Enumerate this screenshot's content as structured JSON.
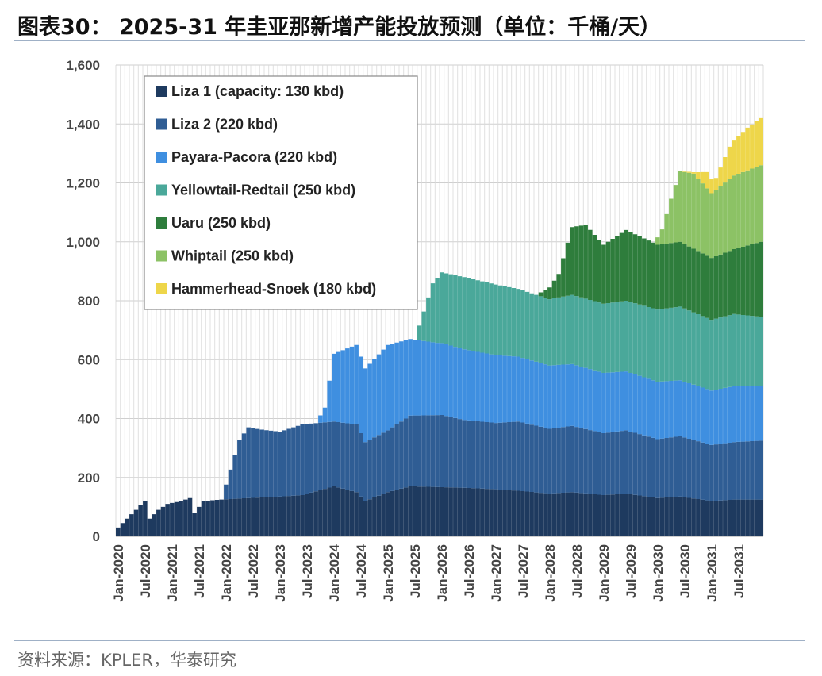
{
  "header": {
    "title": "图表30： 2025-31 年圭亚那新增产能投放预测（单位：千桶/天）"
  },
  "footer": {
    "source": "资料来源：KPLER，华泰研究"
  },
  "chart_data": {
    "type": "area",
    "stacked": true,
    "ylim": [
      0,
      1600
    ],
    "yticks": [
      0,
      200,
      400,
      600,
      800,
      1000,
      1200,
      1400,
      1600
    ],
    "ytick_labels": [
      "0",
      "200",
      "400",
      "600",
      "800",
      "1,000",
      "1,200",
      "1,400",
      "1,600"
    ],
    "xtick_labels": [
      "Jan-2020",
      "Jul-2020",
      "Jan-2021",
      "Jul-2021",
      "Jan-2022",
      "Jul-2022",
      "Jan-2023",
      "Jul-2023",
      "Jan-2024",
      "Jul-2024",
      "Jan-2025",
      "Jul-2025",
      "Jan-2026",
      "Jul-2026",
      "Jan-2027",
      "Jul-2027",
      "Jan-2028",
      "Jul-2028",
      "Jan-2029",
      "Jul-2029",
      "Jan-2030",
      "Jul-2030",
      "Jan-2031",
      "Jul-2031"
    ],
    "grid": true,
    "legend_position": "top-left",
    "series": [
      {
        "name": "Liza 1 (capacity: 130 kbd)",
        "color": "#1e3a5f",
        "points": [
          [
            "2020-01",
            30
          ],
          [
            "2020-03",
            60
          ],
          [
            "2020-05",
            90
          ],
          [
            "2020-07",
            120
          ],
          [
            "2020-08",
            60
          ],
          [
            "2020-10",
            90
          ],
          [
            "2020-12",
            110
          ],
          [
            "2021-03",
            120
          ],
          [
            "2021-05",
            130
          ],
          [
            "2021-06",
            80
          ],
          [
            "2021-08",
            120
          ],
          [
            "2021-12",
            125
          ],
          [
            "2022-06",
            130
          ],
          [
            "2023-01",
            135
          ],
          [
            "2023-06",
            140
          ],
          [
            "2024-01",
            170
          ],
          [
            "2024-06",
            150
          ],
          [
            "2024-08",
            120
          ],
          [
            "2025-01",
            150
          ],
          [
            "2025-06",
            170
          ],
          [
            "2026-06",
            165
          ],
          [
            "2027-01",
            160
          ],
          [
            "2027-06",
            155
          ],
          [
            "2028-01",
            145
          ],
          [
            "2028-06",
            150
          ],
          [
            "2029-01",
            140
          ],
          [
            "2029-06",
            145
          ],
          [
            "2030-01",
            130
          ],
          [
            "2030-06",
            135
          ],
          [
            "2031-01",
            120
          ],
          [
            "2031-06",
            125
          ],
          [
            "2031-12",
            125
          ]
        ]
      },
      {
        "name": "Liza 2 (220 kbd)",
        "color": "#2f5d94",
        "points": [
          [
            "2020-01",
            0
          ],
          [
            "2021-12",
            0
          ],
          [
            "2022-02",
            100
          ],
          [
            "2022-04",
            200
          ],
          [
            "2022-06",
            240
          ],
          [
            "2022-09",
            230
          ],
          [
            "2023-01",
            220
          ],
          [
            "2023-06",
            240
          ],
          [
            "2024-01",
            220
          ],
          [
            "2024-06",
            230
          ],
          [
            "2024-08",
            200
          ],
          [
            "2025-01",
            210
          ],
          [
            "2025-06",
            240
          ],
          [
            "2026-01",
            245
          ],
          [
            "2026-06",
            230
          ],
          [
            "2027-01",
            225
          ],
          [
            "2027-06",
            235
          ],
          [
            "2028-01",
            220
          ],
          [
            "2028-06",
            225
          ],
          [
            "2029-01",
            210
          ],
          [
            "2029-06",
            215
          ],
          [
            "2030-01",
            200
          ],
          [
            "2030-06",
            205
          ],
          [
            "2031-01",
            190
          ],
          [
            "2031-06",
            195
          ],
          [
            "2031-12",
            200
          ]
        ]
      },
      {
        "name": "Payara-Pacora (220 kbd)",
        "color": "#3f8fe0",
        "points": [
          [
            "2020-01",
            0
          ],
          [
            "2023-09",
            0
          ],
          [
            "2023-11",
            50
          ],
          [
            "2024-01",
            230
          ],
          [
            "2024-06",
            270
          ],
          [
            "2024-08",
            250
          ],
          [
            "2025-01",
            290
          ],
          [
            "2025-06",
            260
          ],
          [
            "2025-12",
            245
          ],
          [
            "2026-06",
            240
          ],
          [
            "2027-01",
            230
          ],
          [
            "2027-06",
            220
          ],
          [
            "2028-01",
            215
          ],
          [
            "2028-06",
            210
          ],
          [
            "2029-01",
            205
          ],
          [
            "2029-06",
            200
          ],
          [
            "2030-01",
            195
          ],
          [
            "2030-06",
            190
          ],
          [
            "2031-01",
            185
          ],
          [
            "2031-06",
            190
          ],
          [
            "2031-12",
            185
          ]
        ]
      },
      {
        "name": "Yellowtail-Redtail (250 kbd)",
        "color": "#4aa89a",
        "points": [
          [
            "2020-01",
            0
          ],
          [
            "2025-07",
            0
          ],
          [
            "2025-09",
            100
          ],
          [
            "2025-11",
            200
          ],
          [
            "2026-01",
            240
          ],
          [
            "2026-06",
            245
          ],
          [
            "2027-01",
            240
          ],
          [
            "2027-06",
            230
          ],
          [
            "2028-01",
            225
          ],
          [
            "2028-06",
            235
          ],
          [
            "2029-01",
            235
          ],
          [
            "2029-06",
            240
          ],
          [
            "2030-01",
            245
          ],
          [
            "2030-06",
            250
          ],
          [
            "2031-01",
            240
          ],
          [
            "2031-06",
            245
          ],
          [
            "2031-12",
            235
          ]
        ]
      },
      {
        "name": "Uaru (250 kbd)",
        "color": "#2e7d3c",
        "points": [
          [
            "2020-01",
            0
          ],
          [
            "2027-10",
            0
          ],
          [
            "2028-01",
            40
          ],
          [
            "2028-03",
            80
          ],
          [
            "2028-06",
            230
          ],
          [
            "2028-09",
            250
          ],
          [
            "2029-01",
            200
          ],
          [
            "2029-06",
            240
          ],
          [
            "2030-01",
            220
          ],
          [
            "2030-06",
            220
          ],
          [
            "2031-01",
            210
          ],
          [
            "2031-06",
            220
          ],
          [
            "2031-12",
            255
          ]
        ]
      },
      {
        "name": "Whiptail (250 kbd)",
        "color": "#8cc265",
        "points": [
          [
            "2020-01",
            0
          ],
          [
            "2029-12",
            0
          ],
          [
            "2030-02",
            50
          ],
          [
            "2030-04",
            150
          ],
          [
            "2030-06",
            240
          ],
          [
            "2030-09",
            255
          ],
          [
            "2031-01",
            220
          ],
          [
            "2031-06",
            250
          ],
          [
            "2031-12",
            260
          ]
        ]
      },
      {
        "name": "Hammerhead-Snoek (180 kbd)",
        "color": "#eed64a",
        "points": [
          [
            "2020-01",
            0
          ],
          [
            "2030-06",
            0
          ],
          [
            "2030-09",
            5
          ],
          [
            "2030-12",
            55
          ],
          [
            "2031-02",
            40
          ],
          [
            "2031-05",
            110
          ],
          [
            "2031-09",
            145
          ],
          [
            "2031-12",
            160
          ]
        ]
      }
    ]
  }
}
